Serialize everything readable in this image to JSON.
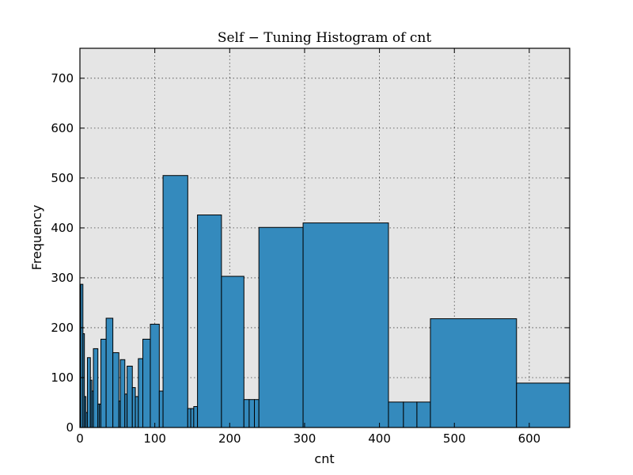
{
  "chart_data": {
    "type": "bar",
    "title": "Self − Tuning Histogram of cnt",
    "xlabel": "cnt",
    "ylabel": "Frequency",
    "xlim": [
      0,
      654
    ],
    "ylim": [
      0,
      760
    ],
    "xticks": [
      0,
      100,
      200,
      300,
      400,
      500,
      600
    ],
    "yticks": [
      0,
      100,
      200,
      300,
      400,
      500,
      600,
      700
    ],
    "grid": true,
    "bar_color": "#348abd",
    "plot_background": "#e5e5e5",
    "bins": [
      {
        "x0": 1,
        "x1": 4,
        "value": 287
      },
      {
        "x0": 4,
        "x1": 6,
        "value": 188
      },
      {
        "x0": 6,
        "x1": 8,
        "value": 62
      },
      {
        "x0": 8,
        "x1": 10,
        "value": 30
      },
      {
        "x0": 10,
        "x1": 14,
        "value": 140
      },
      {
        "x0": 14,
        "x1": 16,
        "value": 95
      },
      {
        "x0": 16,
        "x1": 18,
        "value": 73
      },
      {
        "x0": 18,
        "x1": 24,
        "value": 158
      },
      {
        "x0": 24,
        "x1": 26,
        "value": 47
      },
      {
        "x0": 26,
        "x1": 28,
        "value": 47
      },
      {
        "x0": 28,
        "x1": 35,
        "value": 177
      },
      {
        "x0": 35,
        "x1": 44,
        "value": 219
      },
      {
        "x0": 44,
        "x1": 52,
        "value": 150
      },
      {
        "x0": 52,
        "x1": 54,
        "value": 53
      },
      {
        "x0": 54,
        "x1": 60,
        "value": 136
      },
      {
        "x0": 60,
        "x1": 63,
        "value": 67
      },
      {
        "x0": 63,
        "x1": 70,
        "value": 123
      },
      {
        "x0": 70,
        "x1": 74,
        "value": 80
      },
      {
        "x0": 74,
        "x1": 78,
        "value": 62
      },
      {
        "x0": 78,
        "x1": 84,
        "value": 138
      },
      {
        "x0": 84,
        "x1": 94,
        "value": 177
      },
      {
        "x0": 94,
        "x1": 106,
        "value": 207
      },
      {
        "x0": 106,
        "x1": 111,
        "value": 73
      },
      {
        "x0": 111,
        "x1": 144,
        "value": 505
      },
      {
        "x0": 144,
        "x1": 148,
        "value": 38
      },
      {
        "x0": 148,
        "x1": 152,
        "value": 38
      },
      {
        "x0": 152,
        "x1": 157,
        "value": 42
      },
      {
        "x0": 157,
        "x1": 189,
        "value": 426
      },
      {
        "x0": 189,
        "x1": 219,
        "value": 303
      },
      {
        "x0": 219,
        "x1": 226,
        "value": 56
      },
      {
        "x0": 226,
        "x1": 233,
        "value": 56
      },
      {
        "x0": 233,
        "x1": 239,
        "value": 56
      },
      {
        "x0": 239,
        "x1": 298,
        "value": 401
      },
      {
        "x0": 298,
        "x1": 412,
        "value": 410
      },
      {
        "x0": 412,
        "x1": 432,
        "value": 51
      },
      {
        "x0": 432,
        "x1": 450,
        "value": 51
      },
      {
        "x0": 450,
        "x1": 468,
        "value": 51
      },
      {
        "x0": 468,
        "x1": 583,
        "value": 218
      },
      {
        "x0": 583,
        "x1": 654,
        "value": 89
      }
    ]
  }
}
